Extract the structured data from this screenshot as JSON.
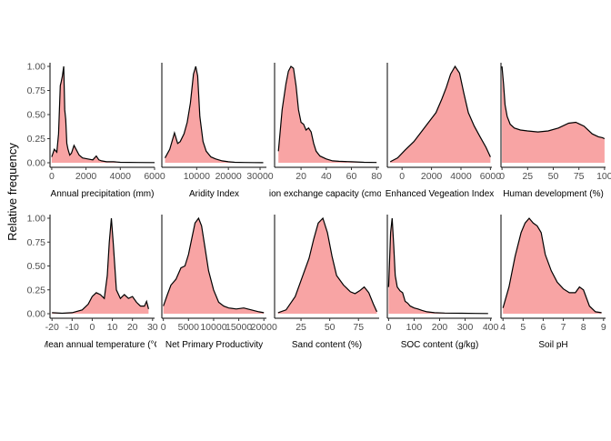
{
  "ylabel": "Relative frequency",
  "y_ticks": [
    "0.00",
    "0.25",
    "0.50",
    "0.75",
    "1.00"
  ],
  "colors": {
    "fill": "#f8a4a4",
    "line": "#000000",
    "axis": "#000000"
  },
  "chart_data": [
    {
      "type": "area",
      "xlabel": "Annual precipitation (mm)",
      "xlim": [
        -100,
        6000
      ],
      "x_ticks": [
        0,
        2000,
        4000,
        6000
      ],
      "ylim": [
        0,
        1
      ],
      "x": [
        0,
        150,
        300,
        400,
        500,
        550,
        620,
        700,
        760,
        820,
        880,
        950,
        1050,
        1150,
        1300,
        1450,
        1600,
        1800,
        2100,
        2400,
        2600,
        2750,
        2900,
        3200,
        3600,
        4000,
        5000,
        6000
      ],
      "y": [
        0.06,
        0.14,
        0.11,
        0.3,
        0.8,
        0.84,
        0.9,
        1.0,
        0.55,
        0.45,
        0.2,
        0.14,
        0.08,
        0.1,
        0.18,
        0.13,
        0.08,
        0.05,
        0.04,
        0.03,
        0.07,
        0.03,
        0.02,
        0.01,
        0.01,
        0.005,
        0.003,
        0.002
      ]
    },
    {
      "type": "area",
      "xlabel": "Aridity Index",
      "xlim": [
        -1000,
        32000
      ],
      "x_ticks": [
        10000,
        20000,
        30000
      ],
      "ylim": [
        0,
        1
      ],
      "x": [
        0,
        1500,
        3000,
        4000,
        4800,
        6000,
        7000,
        8000,
        9000,
        9700,
        10300,
        11000,
        12000,
        13000,
        14500,
        16000,
        18000,
        20000,
        22000,
        25000,
        28000,
        31000
      ],
      "y": [
        0.05,
        0.14,
        0.31,
        0.2,
        0.22,
        0.3,
        0.42,
        0.62,
        0.92,
        1.0,
        0.9,
        0.48,
        0.22,
        0.12,
        0.06,
        0.04,
        0.02,
        0.01,
        0.005,
        0.003,
        0.002,
        0.001
      ]
    },
    {
      "type": "area",
      "xlabel": "Cation exchange capacity (cmol/kg)",
      "xlim": [
        -1,
        82
      ],
      "x_ticks": [
        20,
        40,
        60,
        80
      ],
      "ylim": [
        0,
        1
      ],
      "x": [
        2,
        5,
        8,
        10,
        12,
        14,
        16,
        18,
        20,
        22,
        24,
        26,
        28,
        30,
        32,
        35,
        40,
        45,
        50,
        60,
        70,
        80
      ],
      "y": [
        0.12,
        0.55,
        0.82,
        0.95,
        1.0,
        0.98,
        0.8,
        0.55,
        0.42,
        0.4,
        0.34,
        0.36,
        0.32,
        0.2,
        0.12,
        0.07,
        0.04,
        0.02,
        0.015,
        0.01,
        0.005,
        0.003
      ],
      "x_offset_label": true
    },
    {
      "type": "area",
      "xlabel": "Enhanced Vegeation Index",
      "xlim": [
        -1000,
        6100
      ],
      "x_ticks": [
        0,
        2000,
        4000,
        6000
      ],
      "ylim": [
        0,
        1
      ],
      "x": [
        -800,
        -300,
        200,
        800,
        1300,
        1800,
        2300,
        2700,
        3000,
        3300,
        3600,
        3900,
        4200,
        4500,
        4900,
        5300,
        5700,
        6000
      ],
      "y": [
        0.01,
        0.05,
        0.13,
        0.22,
        0.32,
        0.42,
        0.52,
        0.66,
        0.78,
        0.92,
        1.0,
        0.93,
        0.72,
        0.52,
        0.38,
        0.27,
        0.16,
        0.06
      ]
    },
    {
      "type": "area",
      "xlabel": "Human development (%)",
      "xlim": [
        -1,
        101
      ],
      "x_ticks": [
        0,
        25,
        50,
        75,
        100
      ],
      "ylim": [
        0,
        1
      ],
      "x": [
        0,
        1.5,
        3,
        5,
        8,
        12,
        18,
        25,
        35,
        45,
        55,
        65,
        72,
        80,
        88,
        94,
        98,
        100
      ],
      "y": [
        1.0,
        0.82,
        0.6,
        0.48,
        0.4,
        0.36,
        0.34,
        0.33,
        0.32,
        0.33,
        0.36,
        0.41,
        0.42,
        0.38,
        0.3,
        0.27,
        0.26,
        0.25
      ]
    },
    {
      "type": "area",
      "xlabel": "Mean annual temperature (°C)",
      "xlim": [
        -21,
        31
      ],
      "x_ticks": [
        -20,
        -10,
        0,
        10,
        20,
        30
      ],
      "ylim": [
        0,
        1
      ],
      "x": [
        -20,
        -15,
        -10,
        -5,
        -2,
        0,
        2,
        4,
        6,
        7.5,
        8.5,
        9.5,
        10.5,
        12,
        14,
        16,
        18,
        20,
        22,
        24,
        26,
        27,
        28
      ],
      "y": [
        0.01,
        0.005,
        0.01,
        0.04,
        0.1,
        0.18,
        0.22,
        0.2,
        0.16,
        0.4,
        0.75,
        1.0,
        0.72,
        0.25,
        0.16,
        0.2,
        0.16,
        0.18,
        0.12,
        0.08,
        0.08,
        0.13,
        0.05
      ]
    },
    {
      "type": "area",
      "xlabel": "Net Primary Productivity",
      "xlim": [
        -300,
        20500
      ],
      "x_ticks": [
        0,
        5000,
        10000,
        15000,
        20000
      ],
      "ylim": [
        0,
        1
      ],
      "x": [
        0,
        800,
        1500,
        2500,
        3500,
        4300,
        5000,
        5700,
        6300,
        7000,
        7600,
        8200,
        9000,
        10000,
        11000,
        12000,
        13000,
        14500,
        16000,
        17500,
        19000,
        20000
      ],
      "y": [
        0.08,
        0.2,
        0.3,
        0.36,
        0.48,
        0.5,
        0.62,
        0.8,
        0.95,
        1.0,
        0.92,
        0.72,
        0.45,
        0.25,
        0.12,
        0.08,
        0.06,
        0.05,
        0.06,
        0.04,
        0.02,
        0.01
      ]
    },
    {
      "type": "area",
      "xlabel": "Sand content (%)",
      "xlim": [
        2,
        93
      ],
      "x_ticks": [
        25,
        50,
        75
      ],
      "ylim": [
        0,
        1
      ],
      "x": [
        5,
        12,
        20,
        26,
        32,
        36,
        40,
        44,
        48,
        52,
        56,
        62,
        68,
        72,
        76,
        80,
        84,
        88,
        91
      ],
      "y": [
        0.01,
        0.04,
        0.18,
        0.38,
        0.58,
        0.78,
        0.95,
        1.0,
        0.85,
        0.6,
        0.4,
        0.3,
        0.23,
        0.21,
        0.24,
        0.28,
        0.22,
        0.1,
        0.02
      ]
    },
    {
      "type": "area",
      "xlabel": "SOC content (g/kg)",
      "xlim": [
        -5,
        405
      ],
      "x_ticks": [
        0,
        100,
        200,
        300,
        400
      ],
      "ylim": [
        0,
        1
      ],
      "x": [
        0,
        8,
        14,
        20,
        26,
        34,
        45,
        55,
        65,
        75,
        85,
        100,
        115,
        130,
        150,
        180,
        220,
        280,
        340,
        390
      ],
      "y": [
        0.28,
        0.85,
        1.0,
        0.72,
        0.4,
        0.28,
        0.24,
        0.22,
        0.13,
        0.11,
        0.08,
        0.06,
        0.05,
        0.035,
        0.02,
        0.01,
        0.007,
        0.005,
        0.003,
        0.002
      ]
    },
    {
      "type": "area",
      "xlabel": "Soil pH",
      "xlim": [
        3.9,
        9.1
      ],
      "x_ticks": [
        4,
        5,
        6,
        7,
        8,
        9
      ],
      "ylim": [
        0,
        1
      ],
      "x": [
        4.0,
        4.3,
        4.6,
        4.9,
        5.1,
        5.3,
        5.5,
        5.7,
        5.9,
        6.1,
        6.4,
        6.7,
        7.0,
        7.3,
        7.6,
        7.8,
        8.0,
        8.3,
        8.6,
        8.9
      ],
      "y": [
        0.06,
        0.28,
        0.6,
        0.85,
        0.95,
        1.0,
        0.95,
        0.92,
        0.85,
        0.62,
        0.45,
        0.33,
        0.26,
        0.22,
        0.22,
        0.28,
        0.25,
        0.08,
        0.02,
        0.01
      ]
    }
  ]
}
